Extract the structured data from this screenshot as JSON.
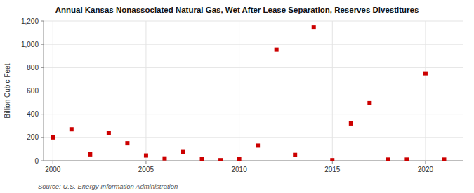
{
  "chart_data": {
    "type": "scatter",
    "title": "Annual Kansas Nonassociated Natural Gas, Wet After Lease Separation, Reserves Divestitures",
    "y_label": "Billion Cubic Feet",
    "annotations": [
      "Source: U.S. Energy Information Administration"
    ],
    "x": [
      2000,
      2001,
      2002,
      2003,
      2004,
      2005,
      2006,
      2007,
      2008,
      2009,
      2010,
      2011,
      2012,
      2013,
      2014,
      2015,
      2016,
      2017,
      2018,
      2019,
      2020,
      2021
    ],
    "values": [
      200,
      270,
      55,
      240,
      150,
      45,
      20,
      75,
      15,
      5,
      15,
      130,
      955,
      50,
      1145,
      5,
      320,
      495,
      10,
      10,
      750,
      10
    ],
    "color": "#cc0000",
    "marker": "square",
    "xlim": [
      1999.5,
      2022
    ],
    "xticks": [
      2000,
      2005,
      2010,
      2015,
      2020
    ],
    "ylim": [
      0,
      1200
    ],
    "yticks": [
      0,
      200,
      400,
      600,
      800,
      {
        "value": 1000,
        "label": "1,000"
      },
      {
        "value": 1200,
        "label": "1,200"
      }
    ],
    "grid": true
  }
}
